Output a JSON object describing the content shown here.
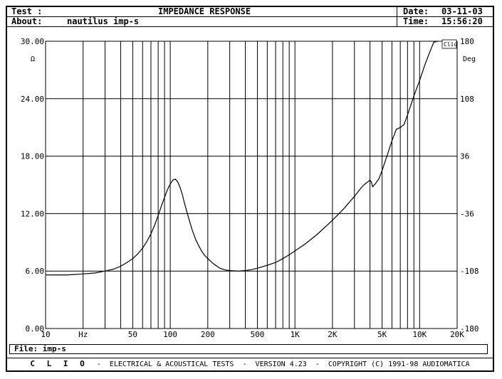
{
  "header": {
    "test_label": "Test :",
    "title": "IMPEDANCE RESPONSE",
    "date_label": "Date:",
    "date": "03-11-03",
    "about_label": "About:",
    "about": "nautilus imp-s",
    "time_label": "Time:",
    "time": "15:56:20"
  },
  "file": {
    "label": "File:",
    "name": "imp-s"
  },
  "footer": {
    "brand": "C L I O",
    "text": "-  ELECTRICAL & ACOUSTICAL TESTS  -  VERSION 4.23  -  COPYRIGHT (C) 1991-98 AUDIOMATICA"
  },
  "chart_data": {
    "type": "line",
    "title": "IMPEDANCE RESPONSE",
    "watermark": "Clio",
    "x_scale": "log",
    "xlim": [
      10,
      20000
    ],
    "x_tick_labels": [
      {
        "value": 10,
        "label": "10"
      },
      {
        "value": 20,
        "label": "Hz"
      },
      {
        "value": 50,
        "label": "50"
      },
      {
        "value": 100,
        "label": "100"
      },
      {
        "value": 200,
        "label": "200"
      },
      {
        "value": 500,
        "label": "500"
      },
      {
        "value": 1000,
        "label": "1K"
      },
      {
        "value": 2000,
        "label": "2K"
      },
      {
        "value": 5000,
        "label": "5K"
      },
      {
        "value": 10000,
        "label": "10K"
      },
      {
        "value": 20000,
        "label": "20K"
      }
    ],
    "ylim": [
      0,
      30
    ],
    "ylabel": "Ω",
    "y_ticks": [
      0,
      6,
      12,
      18,
      24,
      30
    ],
    "y_tick_labels": [
      "0.00",
      "6.00",
      "12.00",
      "18.00",
      "24.00",
      "30.00"
    ],
    "y2lim": [
      -180,
      180
    ],
    "y2label": "Deg",
    "y2_ticks": [
      -180,
      -108,
      -36,
      36,
      108,
      180
    ],
    "y2_tick_labels": [
      "-180",
      "-108",
      "-36",
      "36",
      "108",
      "180"
    ],
    "grid": true,
    "series": [
      {
        "color": "#000000",
        "x": [
          10,
          15,
          20,
          25,
          30,
          35,
          40,
          45,
          50,
          55,
          60,
          65,
          70,
          75,
          80,
          85,
          90,
          95,
          100,
          105,
          110,
          115,
          120,
          125,
          130,
          140,
          150,
          160,
          170,
          180,
          190,
          200,
          220,
          250,
          280,
          300,
          350,
          400,
          450,
          500,
          600,
          700,
          800,
          900,
          1000,
          1200,
          1500,
          2000,
          2500,
          3000,
          3500,
          4000,
          4100,
          4200,
          4400,
          4700,
          5000,
          5500,
          6000,
          6500,
          7000,
          7500,
          8000,
          9000,
          10000,
          11000,
          12000,
          13000,
          14000
        ],
        "y": [
          5.6,
          5.6,
          5.7,
          5.8,
          6.0,
          6.2,
          6.5,
          6.9,
          7.3,
          7.8,
          8.4,
          9.1,
          9.9,
          10.8,
          11.8,
          12.8,
          13.7,
          14.5,
          15.1,
          15.5,
          15.6,
          15.3,
          14.7,
          14.0,
          13.1,
          11.6,
          10.3,
          9.3,
          8.6,
          8.0,
          7.6,
          7.3,
          6.8,
          6.3,
          6.1,
          6.05,
          6.0,
          6.05,
          6.15,
          6.3,
          6.6,
          6.9,
          7.3,
          7.7,
          8.1,
          8.8,
          9.8,
          11.3,
          12.6,
          13.8,
          14.9,
          15.5,
          15.3,
          14.8,
          15.1,
          15.6,
          16.5,
          18.1,
          19.6,
          20.8,
          21.0,
          21.3,
          22.3,
          24.3,
          25.9,
          27.5,
          28.8,
          29.9,
          30.2
        ]
      }
    ]
  }
}
